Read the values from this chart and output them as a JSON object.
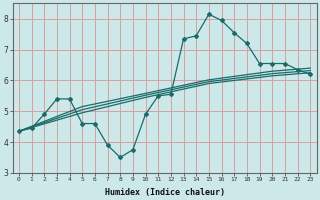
{
  "title": "",
  "xlabel": "Humidex (Indice chaleur)",
  "ylabel": "",
  "bg_color": "#cce8e8",
  "grid_color": "#d4a0a0",
  "line_color": "#1a6b6b",
  "xlim": [
    -0.5,
    23.5
  ],
  "ylim": [
    3.0,
    8.5
  ],
  "xticks": [
    0,
    1,
    2,
    3,
    4,
    5,
    6,
    7,
    8,
    9,
    10,
    11,
    12,
    13,
    14,
    15,
    16,
    17,
    18,
    19,
    20,
    21,
    22,
    23
  ],
  "yticks": [
    3,
    4,
    5,
    6,
    7,
    8
  ],
  "main_line_x": [
    0,
    1,
    2,
    3,
    4,
    5,
    6,
    7,
    8,
    9,
    10,
    11,
    12,
    13,
    14,
    15,
    16,
    17,
    18,
    19,
    20,
    21,
    22,
    23
  ],
  "main_line_y": [
    4.35,
    4.45,
    4.9,
    5.4,
    5.4,
    4.6,
    4.6,
    3.9,
    3.5,
    3.75,
    4.9,
    5.5,
    5.55,
    7.35,
    7.45,
    8.15,
    7.95,
    7.55,
    7.2,
    6.55,
    6.55,
    6.55,
    6.35,
    6.2
  ],
  "line2_x": [
    0,
    5,
    10,
    15,
    20,
    23
  ],
  "line2_y": [
    4.35,
    5.15,
    5.58,
    6.02,
    6.3,
    6.4
  ],
  "line3_x": [
    0,
    5,
    10,
    15,
    20,
    23
  ],
  "line3_y": [
    4.35,
    5.05,
    5.52,
    5.96,
    6.22,
    6.32
  ],
  "line4_x": [
    0,
    5,
    10,
    15,
    20,
    23
  ],
  "line4_y": [
    4.35,
    4.95,
    5.45,
    5.9,
    6.15,
    6.25
  ]
}
